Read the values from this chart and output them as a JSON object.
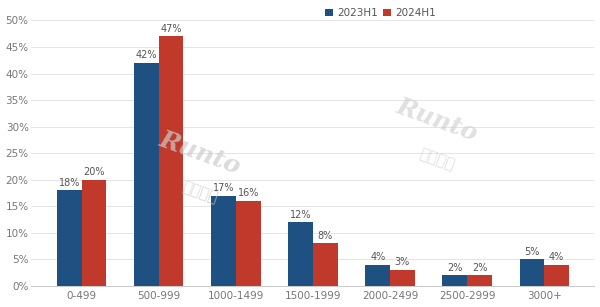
{
  "categories": [
    "0-499",
    "500-999",
    "1000-1499",
    "1500-1999",
    "2000-2499",
    "2500-2999",
    "3000+"
  ],
  "series": {
    "2023H1": [
      18,
      42,
      17,
      12,
      4,
      2,
      5
    ],
    "2024H1": [
      20,
      47,
      16,
      8,
      3,
      2,
      4
    ]
  },
  "colors": {
    "2023H1": "#1f5082",
    "2024H1": "#c0392b"
  },
  "ylim": [
    0,
    52
  ],
  "yticks": [
    0,
    5,
    10,
    15,
    20,
    25,
    30,
    35,
    40,
    45,
    50
  ],
  "background_color": "#ffffff",
  "bar_width": 0.32,
  "label_fontsize": 7,
  "axis_fontsize": 7.5,
  "legend_fontsize": 7.5,
  "watermark1": "Runto",
  "watermark2": "洛图科技"
}
